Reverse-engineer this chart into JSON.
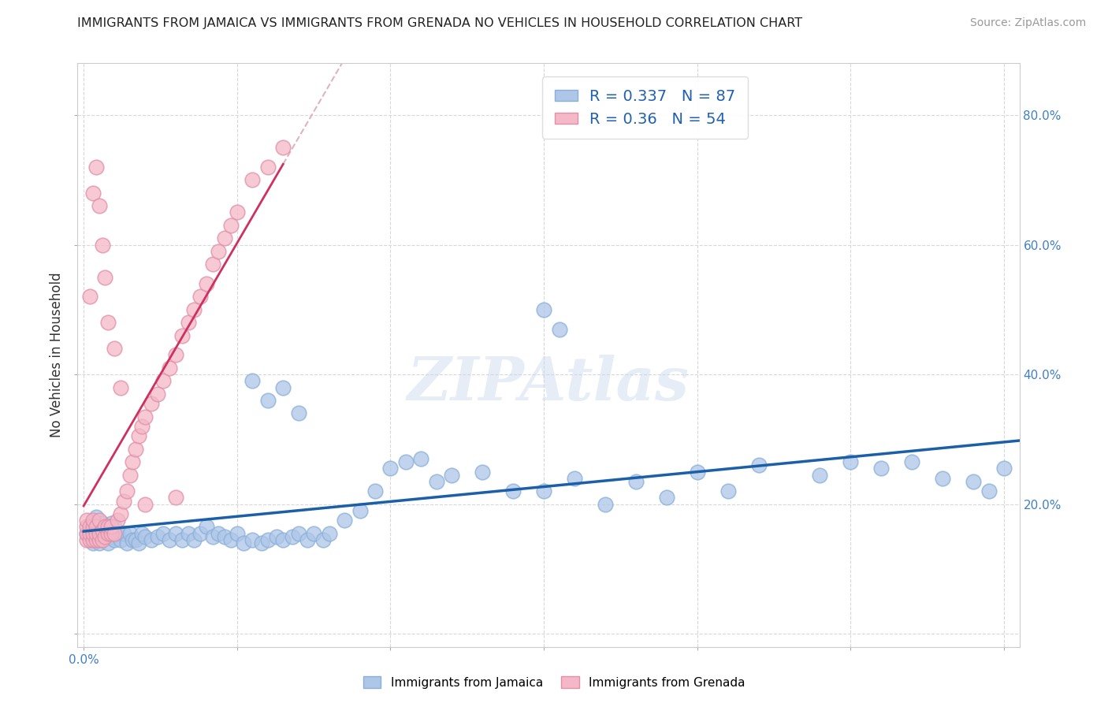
{
  "title": "IMMIGRANTS FROM JAMAICA VS IMMIGRANTS FROM GRENADA NO VEHICLES IN HOUSEHOLD CORRELATION CHART",
  "source": "Source: ZipAtlas.com",
  "ylabel": "No Vehicles in Household",
  "xlim": [
    -0.002,
    0.305
  ],
  "ylim": [
    -0.02,
    0.88
  ],
  "xticks": [
    0.0,
    0.05,
    0.1,
    0.15,
    0.2,
    0.25,
    0.3
  ],
  "xticklabels_show": {
    "0.0": "0.0%"
  },
  "yticks_right": [
    0.2,
    0.4,
    0.6,
    0.8
  ],
  "yticklabels_right": [
    "20.0%",
    "40.0%",
    "60.0%",
    "80.0%"
  ],
  "jamaica_color": "#aec6e8",
  "jamaica_edge_color": "#8ab0d8",
  "grenada_color": "#f4b8c8",
  "grenada_edge_color": "#e090a8",
  "jamaica_line_color": "#1a5fa8",
  "grenada_line_color": "#d03060",
  "grenada_dashed_color": "#d8a0b0",
  "jamaica_R": 0.337,
  "jamaica_N": 87,
  "grenada_R": 0.36,
  "grenada_N": 54,
  "watermark": "ZIPAtlas",
  "background_color": "#ffffff",
  "grid_color": "#d8d8d8",
  "title_fontsize": 11.5,
  "source_fontsize": 10,
  "tick_fontsize": 11,
  "ylabel_fontsize": 12,
  "legend_fontsize": 14,
  "jamaica_x": [
    0.001,
    0.002,
    0.003,
    0.003,
    0.004,
    0.004,
    0.005,
    0.005,
    0.006,
    0.006,
    0.007,
    0.007,
    0.008,
    0.008,
    0.009,
    0.009,
    0.01,
    0.01,
    0.011,
    0.012,
    0.013,
    0.014,
    0.015,
    0.016,
    0.017,
    0.018,
    0.019,
    0.02,
    0.022,
    0.024,
    0.026,
    0.028,
    0.03,
    0.032,
    0.034,
    0.036,
    0.038,
    0.04,
    0.042,
    0.044,
    0.046,
    0.048,
    0.05,
    0.052,
    0.055,
    0.058,
    0.06,
    0.063,
    0.065,
    0.068,
    0.07,
    0.073,
    0.075,
    0.078,
    0.08,
    0.085,
    0.09,
    0.095,
    0.1,
    0.105,
    0.11,
    0.115,
    0.12,
    0.13,
    0.14,
    0.15,
    0.16,
    0.17,
    0.18,
    0.19,
    0.2,
    0.21,
    0.22,
    0.24,
    0.25,
    0.26,
    0.27,
    0.28,
    0.29,
    0.295,
    0.3,
    0.055,
    0.06,
    0.065,
    0.07,
    0.15,
    0.155
  ],
  "jamaica_y": [
    0.155,
    0.16,
    0.14,
    0.17,
    0.15,
    0.18,
    0.14,
    0.16,
    0.155,
    0.17,
    0.15,
    0.16,
    0.14,
    0.16,
    0.15,
    0.17,
    0.145,
    0.165,
    0.155,
    0.145,
    0.155,
    0.14,
    0.155,
    0.145,
    0.145,
    0.14,
    0.155,
    0.15,
    0.145,
    0.15,
    0.155,
    0.145,
    0.155,
    0.145,
    0.155,
    0.145,
    0.155,
    0.165,
    0.15,
    0.155,
    0.15,
    0.145,
    0.155,
    0.14,
    0.145,
    0.14,
    0.145,
    0.15,
    0.145,
    0.15,
    0.155,
    0.145,
    0.155,
    0.145,
    0.155,
    0.175,
    0.19,
    0.22,
    0.255,
    0.265,
    0.27,
    0.235,
    0.245,
    0.25,
    0.22,
    0.22,
    0.24,
    0.2,
    0.235,
    0.21,
    0.25,
    0.22,
    0.26,
    0.245,
    0.265,
    0.255,
    0.265,
    0.24,
    0.235,
    0.22,
    0.255,
    0.39,
    0.36,
    0.38,
    0.34,
    0.5,
    0.47
  ],
  "grenada_x": [
    0.001,
    0.001,
    0.001,
    0.001,
    0.002,
    0.002,
    0.002,
    0.003,
    0.003,
    0.003,
    0.003,
    0.004,
    0.004,
    0.004,
    0.005,
    0.005,
    0.005,
    0.006,
    0.006,
    0.007,
    0.007,
    0.008,
    0.008,
    0.009,
    0.009,
    0.01,
    0.011,
    0.012,
    0.013,
    0.014,
    0.015,
    0.016,
    0.017,
    0.018,
    0.019,
    0.02,
    0.022,
    0.024,
    0.026,
    0.028,
    0.03,
    0.032,
    0.034,
    0.036,
    0.038,
    0.04,
    0.042,
    0.044,
    0.046,
    0.048,
    0.05,
    0.055,
    0.06,
    0.065
  ],
  "grenada_y": [
    0.145,
    0.155,
    0.165,
    0.175,
    0.145,
    0.155,
    0.165,
    0.145,
    0.155,
    0.165,
    0.175,
    0.145,
    0.155,
    0.165,
    0.145,
    0.155,
    0.175,
    0.145,
    0.16,
    0.15,
    0.165,
    0.155,
    0.165,
    0.155,
    0.165,
    0.155,
    0.175,
    0.185,
    0.205,
    0.22,
    0.245,
    0.265,
    0.285,
    0.305,
    0.32,
    0.335,
    0.355,
    0.37,
    0.39,
    0.41,
    0.43,
    0.46,
    0.48,
    0.5,
    0.52,
    0.54,
    0.57,
    0.59,
    0.61,
    0.63,
    0.65,
    0.7,
    0.72,
    0.75
  ],
  "grenada_scattered_x": [
    0.002,
    0.003,
    0.004,
    0.005,
    0.006,
    0.007,
    0.008,
    0.01,
    0.012,
    0.02,
    0.03
  ],
  "grenada_scattered_y": [
    0.52,
    0.68,
    0.72,
    0.66,
    0.6,
    0.55,
    0.48,
    0.44,
    0.38,
    0.2,
    0.21
  ]
}
